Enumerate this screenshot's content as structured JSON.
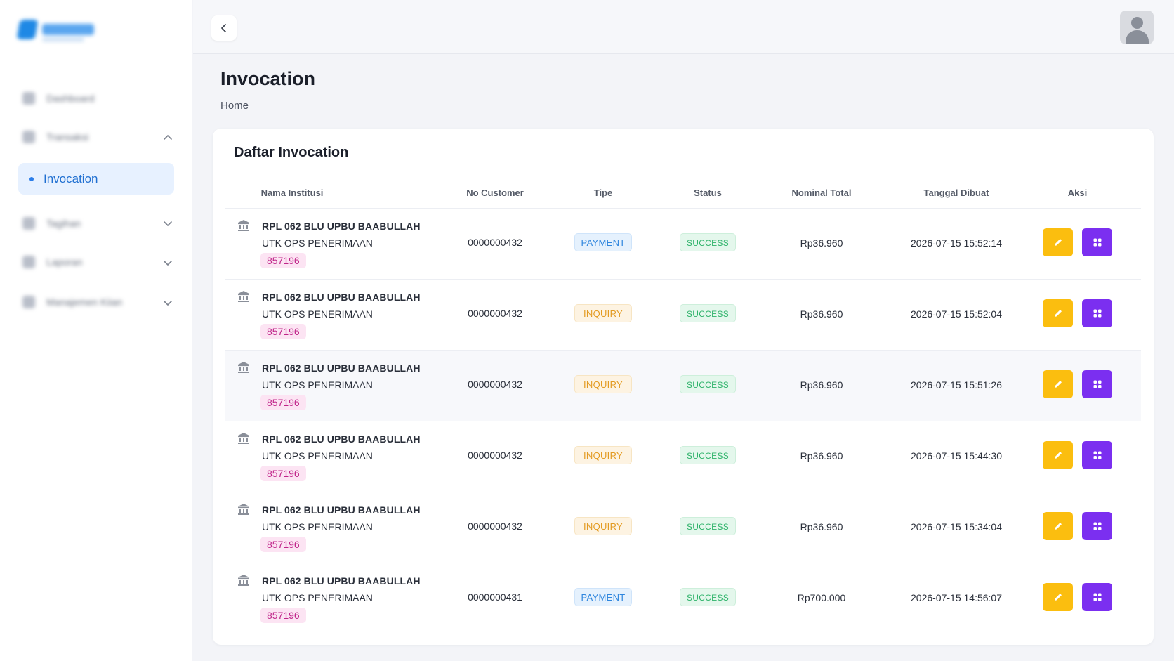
{
  "header": {
    "title": "Invocation",
    "breadcrumb": "Home"
  },
  "sidebar": {
    "items": [
      {
        "label": "Dashboard",
        "icon": "dashboard-icon",
        "expandable": false
      },
      {
        "label": "Transaksi",
        "icon": "transaction-icon",
        "expandable": true,
        "expanded": true
      },
      {
        "label": "Invocation",
        "icon": "dot",
        "active": true
      },
      {
        "label": "Tagihan",
        "icon": "bill-icon",
        "expandable": true
      },
      {
        "label": "Laporan",
        "icon": "report-icon",
        "expandable": true
      },
      {
        "label": "Manajemen Kiian",
        "icon": "manage-icon",
        "expandable": true
      }
    ]
  },
  "card": {
    "title": "Daftar Invocation"
  },
  "table": {
    "columns": [
      "Nama Institusi",
      "No Customer",
      "Tipe",
      "Status",
      "Nominal Total",
      "Tanggal Dibuat",
      "Aksi"
    ],
    "rows": [
      {
        "inst_line1": "RPL 062 BLU UPBU BAABULLAH",
        "inst_line2": "UTK OPS PENERIMAAN",
        "code": "857196",
        "customer": "0000000432",
        "tipe": "PAYMENT",
        "status": "SUCCESS",
        "nominal": "Rp36.960",
        "date": "2026-07-15 15:52:14"
      },
      {
        "inst_line1": "RPL 062 BLU UPBU BAABULLAH",
        "inst_line2": "UTK OPS PENERIMAAN",
        "code": "857196",
        "customer": "0000000432",
        "tipe": "INQUIRY",
        "status": "SUCCESS",
        "nominal": "Rp36.960",
        "date": "2026-07-15 15:52:04"
      },
      {
        "inst_line1": "RPL 062 BLU UPBU BAABULLAH",
        "inst_line2": "UTK OPS PENERIMAAN",
        "code": "857196",
        "customer": "0000000432",
        "tipe": "INQUIRY",
        "status": "SUCCESS",
        "nominal": "Rp36.960",
        "date": "2026-07-15 15:51:26"
      },
      {
        "inst_line1": "RPL 062 BLU UPBU BAABULLAH",
        "inst_line2": "UTK OPS PENERIMAAN",
        "code": "857196",
        "customer": "0000000432",
        "tipe": "INQUIRY",
        "status": "SUCCESS",
        "nominal": "Rp36.960",
        "date": "2026-07-15 15:44:30"
      },
      {
        "inst_line1": "RPL 062 BLU UPBU BAABULLAH",
        "inst_line2": "UTK OPS PENERIMAAN",
        "code": "857196",
        "customer": "0000000432",
        "tipe": "INQUIRY",
        "status": "SUCCESS",
        "nominal": "Rp36.960",
        "date": "2026-07-15 15:34:04"
      },
      {
        "inst_line1": "RPL 062 BLU UPBU BAABULLAH",
        "inst_line2": "UTK OPS PENERIMAAN",
        "code": "857196",
        "customer": "0000000431",
        "tipe": "PAYMENT",
        "status": "SUCCESS",
        "nominal": "Rp700.000",
        "date": "2026-07-15 14:56:07"
      }
    ]
  },
  "colors": {
    "accent": "#2b7de9",
    "edit": "#fbbe0f",
    "detail": "#7b2ff0",
    "success": "#2eb36a",
    "payment": "#2f86de",
    "inquiry": "#e39b22",
    "code": "#c0268a"
  }
}
